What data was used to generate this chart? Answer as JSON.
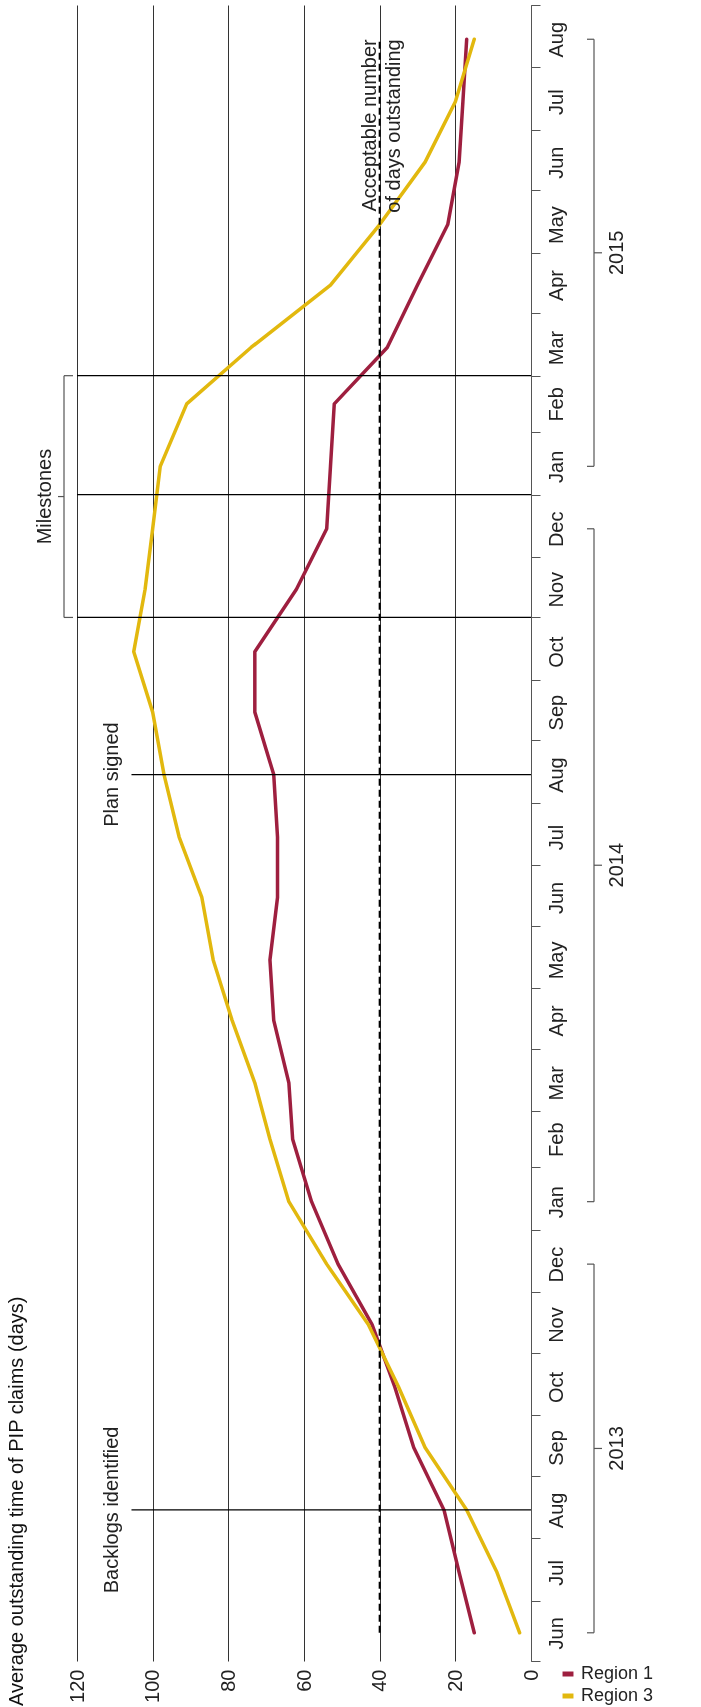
{
  "chart_data": {
    "type": "line",
    "orientation": "horizontal",
    "title": "Average outstanding time of PIP claims (days)",
    "x": [
      "2013-06-15",
      "2013-07-15",
      "2013-08-15",
      "2013-09-15",
      "2013-10-15",
      "2013-11-15",
      "2013-12-15",
      "2014-01-15",
      "2014-02-15",
      "2014-03-15",
      "2014-04-15",
      "2014-05-15",
      "2014-06-15",
      "2014-07-15",
      "2014-08-15",
      "2014-09-15",
      "2014-10-15",
      "2014-11-15",
      "2014-12-15",
      "2015-01-15",
      "2015-02-15",
      "2015-03-15",
      "2015-04-15",
      "2015-05-15",
      "2015-06-15",
      "2015-07-15",
      "2015-08-15"
    ],
    "series": [
      {
        "name": "Region 1",
        "color": "#9e1f3f",
        "values": [
          15,
          19,
          23,
          31,
          36,
          42,
          51,
          58,
          63,
          64,
          68,
          69,
          67,
          67,
          68,
          73,
          73,
          62,
          54,
          53,
          52,
          38,
          30,
          22,
          19,
          18,
          17
        ]
      },
      {
        "name": "Region 3",
        "color": "#e2b80e",
        "values": [
          3,
          9,
          17,
          28,
          35,
          43,
          54,
          64,
          69,
          73,
          79,
          84,
          87,
          93,
          97,
          100,
          105,
          102,
          100,
          98,
          91,
          74,
          53,
          40,
          28,
          20,
          15
        ]
      }
    ],
    "xlim": [
      120,
      0
    ],
    "xticks": [
      120,
      100,
      80,
      60,
      40,
      20,
      0
    ],
    "ylim": [
      "2013-06-01",
      "2015-09-01"
    ],
    "yticks": [
      {
        "value": "2013-06-01",
        "label": null
      },
      {
        "value": "2013-06-15",
        "label": "Jun"
      },
      {
        "value": "2013-07-01",
        "label": null
      },
      {
        "value": "2013-07-15",
        "label": "Jul"
      },
      {
        "value": "2013-08-01",
        "label": null
      },
      {
        "value": "2013-08-15",
        "label": "Aug"
      },
      {
        "value": "2013-09-01",
        "label": null
      },
      {
        "value": "2013-09-15",
        "label": "Sep"
      },
      {
        "value": "2013-10-01",
        "label": null
      },
      {
        "value": "2013-10-15",
        "label": "Oct"
      },
      {
        "value": "2013-11-01",
        "label": null
      },
      {
        "value": "2013-11-15",
        "label": "Nov"
      },
      {
        "value": "2013-12-01",
        "label": null
      },
      {
        "value": "2013-12-15",
        "label": "Dec"
      },
      {
        "value": "2014-01-01",
        "label": null
      },
      {
        "value": "2014-01-15",
        "label": "Jan"
      },
      {
        "value": "2014-02-01",
        "label": null
      },
      {
        "value": "2014-02-15",
        "label": "Feb"
      },
      {
        "value": "2014-03-01",
        "label": null
      },
      {
        "value": "2014-03-15",
        "label": "Mar"
      },
      {
        "value": "2014-04-01",
        "label": null
      },
      {
        "value": "2014-04-15",
        "label": "Apr"
      },
      {
        "value": "2014-05-01",
        "label": null
      },
      {
        "value": "2014-05-15",
        "label": "May"
      },
      {
        "value": "2014-06-01",
        "label": null
      },
      {
        "value": "2014-06-15",
        "label": "Jun"
      },
      {
        "value": "2014-07-01",
        "label": null
      },
      {
        "value": "2014-07-15",
        "label": "Jul"
      },
      {
        "value": "2014-08-01",
        "label": null
      },
      {
        "value": "2014-08-15",
        "label": "Aug"
      },
      {
        "value": "2014-09-01",
        "label": null
      },
      {
        "value": "2014-09-15",
        "label": "Sep"
      },
      {
        "value": "2014-10-01",
        "label": null
      },
      {
        "value": "2014-10-15",
        "label": "Oct"
      },
      {
        "value": "2014-11-01",
        "label": null
      },
      {
        "value": "2014-11-15",
        "label": "Nov"
      },
      {
        "value": "2014-12-01",
        "label": null
      },
      {
        "value": "2014-12-15",
        "label": "Dec"
      },
      {
        "value": "2015-01-01",
        "label": null
      },
      {
        "value": "2015-01-15",
        "label": "Jan"
      },
      {
        "value": "2015-02-01",
        "label": null
      },
      {
        "value": "2015-02-15",
        "label": "Feb"
      },
      {
        "value": "2015-03-01",
        "label": null
      },
      {
        "value": "2015-03-15",
        "label": "Mar"
      },
      {
        "value": "2015-04-01",
        "label": null
      },
      {
        "value": "2015-04-15",
        "label": "Apr"
      },
      {
        "value": "2015-05-01",
        "label": null
      },
      {
        "value": "2015-05-15",
        "label": "May"
      },
      {
        "value": "2015-06-01",
        "label": null
      },
      {
        "value": "2015-06-15",
        "label": "Jun"
      },
      {
        "value": "2015-07-01",
        "label": null
      },
      {
        "value": "2015-07-15",
        "label": "Jul"
      },
      {
        "value": "2015-08-01",
        "label": null
      },
      {
        "value": "2015-08-15",
        "label": "Aug"
      },
      {
        "value": "2015-09-01",
        "label": null
      }
    ],
    "grid": "x",
    "legend": "bottom right",
    "ref_lines": [
      {
        "axis": "x",
        "value": 40,
        "label": "Acceptable number of days outstanding",
        "line_style": "dashed",
        "color": "#000000"
      },
      {
        "axis": "y",
        "value": "2013-08-15",
        "label": "Backlogs identified"
      },
      {
        "axis": "y",
        "value": "2014-08-15",
        "label": "Plan signed"
      },
      {
        "axis": "y",
        "value": "2014-11-01"
      },
      {
        "axis": "y",
        "value": "2015-01-01"
      },
      {
        "axis": "y",
        "value": "2015-03-01"
      }
    ],
    "annotations": [
      "Milestones",
      "2013",
      "2014",
      "2015"
    ]
  }
}
